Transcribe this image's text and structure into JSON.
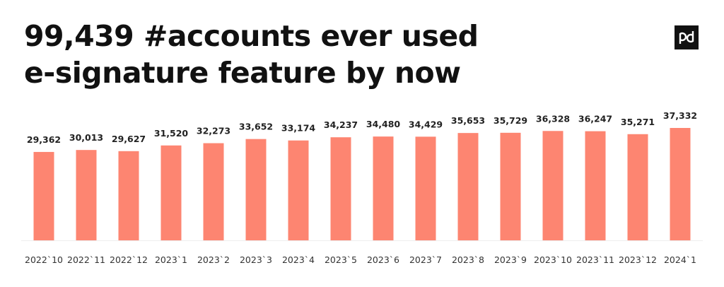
{
  "chart_data": {
    "type": "bar",
    "title": [
      "99,439 #accounts ever used",
      "e-signature feature by now"
    ],
    "categories": [
      "2022`10",
      "2022`11",
      "2022`12",
      "2023`1",
      "2023`2",
      "2023`3",
      "2023`4",
      "2023`5",
      "2023`6",
      "2023`7",
      "2023`8",
      "2023`9",
      "2023`10",
      "2023`11",
      "2023`12",
      "2024`1"
    ],
    "values": [
      29362,
      30013,
      29627,
      31520,
      32273,
      33652,
      33174,
      34237,
      34480,
      34429,
      35653,
      35729,
      36328,
      36247,
      35271,
      37332
    ],
    "value_labels": [
      "29,362",
      "30,013",
      "29,627",
      "31,520",
      "32,273",
      "33,652",
      "33,174",
      "34,237",
      "34,480",
      "34,429",
      "35,653",
      "35,729",
      "36,328",
      "36,247",
      "35,271",
      "37,332"
    ],
    "color": "#fd8571"
  }
}
